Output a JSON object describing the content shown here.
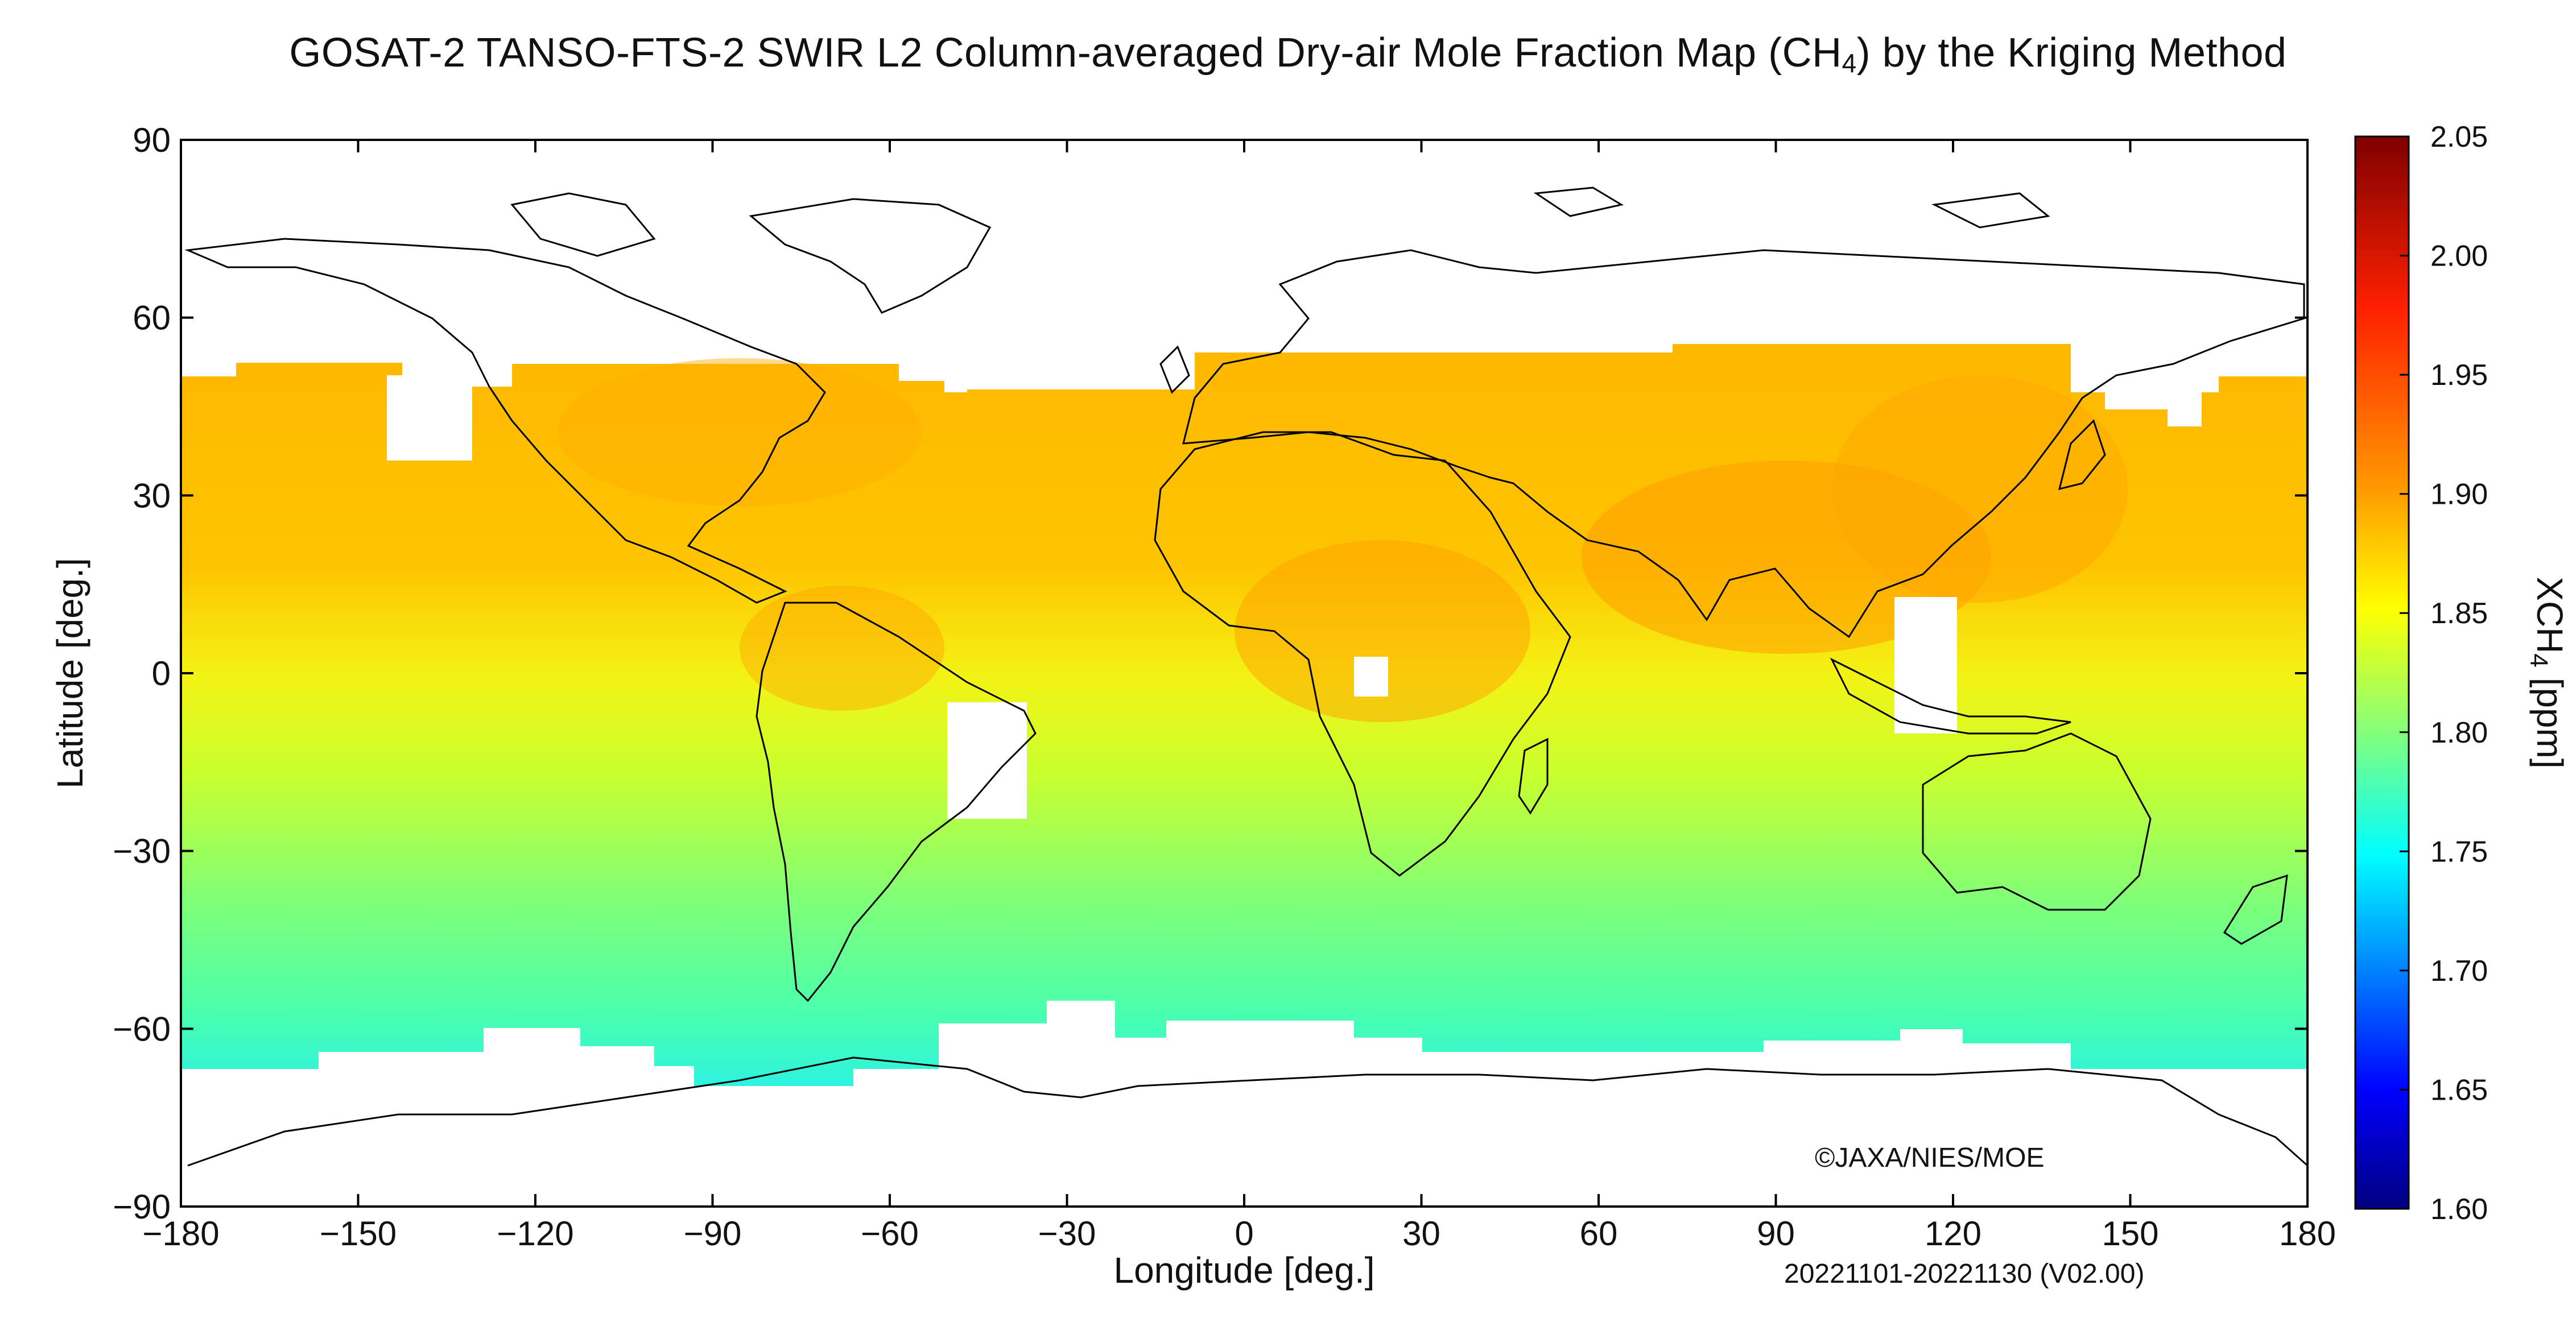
{
  "title_prefix": "GOSAT-2 TANSO-FTS-2 SWIR L2 Column-averaged Dry-air Mole Fraction Map (CH",
  "title_sub": "4",
  "title_suffix": ") by the Kriging Method",
  "copyright": "©JAXA/NIES/MOE",
  "period": "20221101-20221130 (V02.00)",
  "map": {
    "x_axis_label": "Longitude [deg.]",
    "y_axis_label": "Latitude [deg.]",
    "x_ticks": [
      -180,
      -150,
      -120,
      -90,
      -60,
      -30,
      0,
      30,
      60,
      90,
      120,
      150,
      180
    ],
    "x_tick_labels": [
      "−180",
      "−150",
      "−120",
      "−90",
      "−60",
      "−30",
      "0",
      "30",
      "60",
      "90",
      "120",
      "150",
      "180"
    ],
    "y_ticks": [
      90,
      60,
      30,
      0,
      -30,
      -60,
      -90
    ],
    "y_tick_labels": [
      "90",
      "60",
      "30",
      "0",
      "−30",
      "−60",
      "−90"
    ],
    "lon_range": [
      -180,
      180
    ],
    "lat_range": [
      -90,
      90
    ]
  },
  "colorbar": {
    "label_main": "XCH",
    "label_sub": "4",
    "label_unit": " [ppm]",
    "range": [
      1.6,
      2.05
    ],
    "ticks": [
      2.05,
      2.0,
      1.95,
      1.9,
      1.85,
      1.8,
      1.75,
      1.7,
      1.65,
      1.6
    ],
    "tick_labels": [
      "2.05",
      "2.00",
      "1.95",
      "1.90",
      "1.85",
      "1.80",
      "1.75",
      "1.70",
      "1.65",
      "1.60"
    ],
    "colors": [
      "#00007f",
      "#0000ff",
      "#007fff",
      "#00ffff",
      "#7fff7f",
      "#ffff00",
      "#ff7f00",
      "#ff0000",
      "#7f0000"
    ]
  }
}
